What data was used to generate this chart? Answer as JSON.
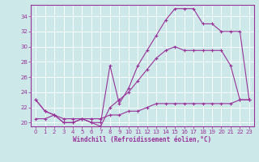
{
  "xlabel": "Windchill (Refroidissement éolien,°C)",
  "background_color": "#cce8e8",
  "grid_color": "#ffffff",
  "line_color": "#993399",
  "xlim": [
    -0.5,
    23.5
  ],
  "ylim": [
    19.5,
    35.5
  ],
  "xticks": [
    0,
    1,
    2,
    3,
    4,
    5,
    6,
    7,
    8,
    9,
    10,
    11,
    12,
    13,
    14,
    15,
    16,
    17,
    18,
    19,
    20,
    21,
    22,
    23
  ],
  "yticks": [
    20,
    22,
    24,
    26,
    28,
    30,
    32,
    34
  ],
  "line1_x": [
    0,
    1,
    2,
    3,
    4,
    5,
    6,
    7,
    8,
    9,
    10,
    11,
    12,
    13,
    14,
    15,
    16,
    17,
    18,
    19,
    20,
    21,
    22,
    23
  ],
  "line1_y": [
    23,
    21.5,
    21.0,
    20.0,
    20.0,
    20.5,
    20.0,
    20.0,
    27.5,
    22.5,
    24.5,
    27.5,
    29.5,
    31.5,
    33.5,
    35.0,
    35.0,
    35.0,
    33.0,
    33.0,
    32.0,
    32.0,
    32.0,
    23.0
  ],
  "line2_x": [
    0,
    1,
    2,
    3,
    4,
    5,
    6,
    7,
    8,
    9,
    10,
    11,
    12,
    13,
    14,
    15,
    16,
    17,
    18,
    19,
    20,
    21,
    22,
    23
  ],
  "line2_y": [
    23,
    21.5,
    21.0,
    20.0,
    20.0,
    20.5,
    20.0,
    19.5,
    22.0,
    23.0,
    24.0,
    25.5,
    27.0,
    28.5,
    29.5,
    30.0,
    29.5,
    29.5,
    29.5,
    29.5,
    29.5,
    27.5,
    23.0,
    23.0
  ],
  "line3_x": [
    0,
    1,
    2,
    3,
    4,
    5,
    6,
    7,
    8,
    9,
    10,
    11,
    12,
    13,
    14,
    15,
    16,
    17,
    18,
    19,
    20,
    21,
    22,
    23
  ],
  "line3_y": [
    20.5,
    20.5,
    21.0,
    20.5,
    20.5,
    20.5,
    20.5,
    20.5,
    21.0,
    21.0,
    21.5,
    21.5,
    22.0,
    22.5,
    22.5,
    22.5,
    22.5,
    22.5,
    22.5,
    22.5,
    22.5,
    22.5,
    23.0,
    23.0
  ]
}
